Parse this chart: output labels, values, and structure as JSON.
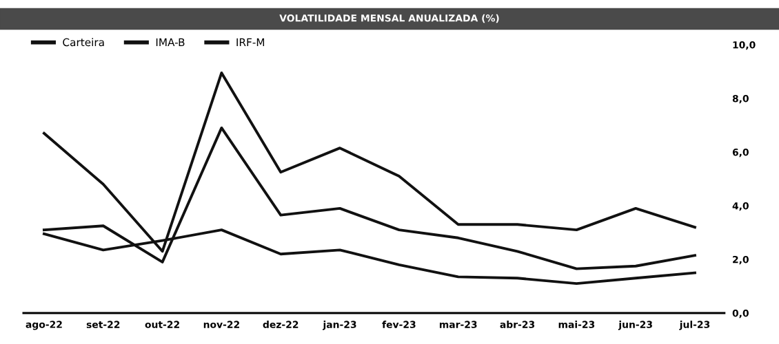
{
  "chart_data": {
    "type": "line",
    "title": "VOLATILIDADE MENSAL ANUALIZADA (%)",
    "categories": [
      "ago-22",
      "set-22",
      "out-22",
      "nov-22",
      "dez-22",
      "jan-23",
      "fev-23",
      "mar-23",
      "abr-23",
      "mai-23",
      "jun-23",
      "jul-23"
    ],
    "series": [
      {
        "name": "Carteira",
        "color": "#111111",
        "values": [
          3.1,
          3.25,
          1.9,
          6.9,
          3.65,
          3.9,
          3.1,
          2.8,
          2.3,
          1.65,
          1.75,
          2.15
        ]
      },
      {
        "name": "IMA-B",
        "color": "#111111",
        "values": [
          6.7,
          4.8,
          2.3,
          8.95,
          5.25,
          6.15,
          5.1,
          3.3,
          3.3,
          3.1,
          3.9,
          3.2
        ]
      },
      {
        "name": "IRF-M",
        "color": "#111111",
        "values": [
          2.95,
          2.35,
          2.7,
          3.1,
          2.2,
          2.35,
          1.8,
          1.35,
          1.3,
          1.1,
          1.3,
          1.5
        ]
      }
    ],
    "ylim": [
      0,
      10
    ],
    "yticks": [
      {
        "value": 0,
        "label": "0,0"
      },
      {
        "value": 2,
        "label": "2,0"
      },
      {
        "value": 4,
        "label": "4,0"
      },
      {
        "value": 6,
        "label": "6,0"
      },
      {
        "value": 8,
        "label": "8,0"
      },
      {
        "value": 10,
        "label": "10,0"
      }
    ],
    "grid": false,
    "legend": "top left",
    "marker": "none",
    "line_style": "solid"
  }
}
